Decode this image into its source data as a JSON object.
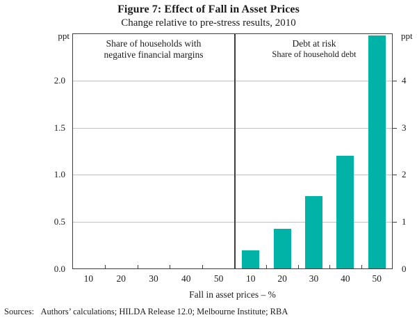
{
  "title": "Figure 7: Effect of Fall in Asset Prices",
  "subtitle": "Change relative to pre-stress results, 2010",
  "left_axis": {
    "unit": "ppt",
    "max": 2.5,
    "ticks": [
      {
        "label": "2.0",
        "value": 2.0
      },
      {
        "label": "1.5",
        "value": 1.5
      },
      {
        "label": "1.0",
        "value": 1.0
      },
      {
        "label": "0.5",
        "value": 0.5
      },
      {
        "label": "0.0",
        "value": 0.0
      }
    ]
  },
  "right_axis": {
    "unit": "ppt",
    "max": 5,
    "ticks": [
      {
        "label": "4",
        "value": 4
      },
      {
        "label": "3",
        "value": 3
      },
      {
        "label": "2",
        "value": 2
      },
      {
        "label": "1",
        "value": 1
      },
      {
        "label": "0",
        "value": 0
      }
    ]
  },
  "panels": [
    {
      "title_line1": "Share of households with",
      "title_line2": "negative financial margins"
    },
    {
      "title_line1": "Debt at risk",
      "title_line2": "Share of household debt"
    }
  ],
  "x_axis": {
    "label": "Fall in asset prices – %",
    "categories": [
      "10",
      "20",
      "30",
      "40",
      "50"
    ]
  },
  "footer": {
    "sources_label": "Sources:",
    "sources_text": "Authors’ calculations; HILDA Release 12.0; Melbourne Institute; RBA"
  },
  "colors": {
    "bar": "#00b3a6",
    "frame": "#3d3d3d",
    "grid": "#c2c2c2",
    "text": "#1b1b1b"
  },
  "chart_data": {
    "type": "bar",
    "title": "Figure 7: Effect of Fall in Asset Prices",
    "subtitle": "Change relative to pre-stress results, 2010",
    "xlabel": "Fall in asset prices – %",
    "categories": [
      10,
      20,
      30,
      40,
      50
    ],
    "grid": true,
    "legend": "none",
    "bar_color": "#00b3a6",
    "gridline_values_left_scale": [
      0.5,
      1.0,
      1.5,
      2.0
    ],
    "panels": [
      {
        "name": "Share of households with negative financial margins",
        "axis": "left",
        "unit": "ppt",
        "ylim": [
          0,
          2.5
        ],
        "values": [
          0,
          0,
          0,
          0,
          0
        ]
      },
      {
        "name": "Debt at risk — Share of household debt",
        "axis": "right",
        "unit": "ppt",
        "ylim": [
          0,
          5
        ],
        "values": [
          0.4,
          0.85,
          1.55,
          2.4,
          4.95
        ]
      }
    ]
  }
}
